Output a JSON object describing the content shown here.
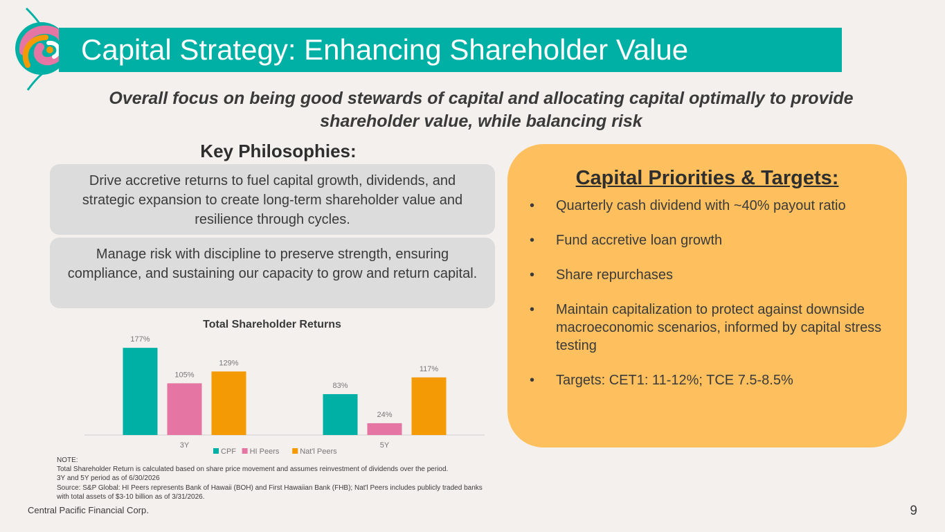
{
  "header": {
    "title": "Capital Strategy: Enhancing Shareholder Value",
    "brand_colors": {
      "teal": "#00b0a4",
      "pink": "#e575a3",
      "orange": "#f49a05",
      "gold": "#fec05e"
    }
  },
  "subtitle": {
    "line1": "Overall focus on being good stewards of capital and allocating capital optimally to provide",
    "line2": "shareholder value, while balancing risk"
  },
  "philosophies": {
    "heading": "Key Philosophies:",
    "items": [
      "Drive accretive returns to fuel capital growth, dividends, and strategic expansion to create long-term shareholder value and resilience through cycles.",
      "Manage risk with discipline to preserve strength, ensuring compliance, and sustaining our capacity to grow and return capital."
    ]
  },
  "priorities": {
    "heading": "Capital Priorities & Targets:",
    "bullet": "•",
    "items": [
      "Quarterly cash dividend with ~40% payout ratio",
      "Fund accretive loan growth",
      "Share repurchases",
      "Maintain capitalization to protect against downside macroeconomic scenarios, informed by capital stress testing",
      "Targets: CET1: 11-12%; TCE 7.5-8.5%"
    ]
  },
  "chart_data": {
    "type": "bar",
    "title": "Total Shareholder Returns",
    "categories": [
      "3Y",
      "5Y"
    ],
    "series": [
      {
        "name": "CPF",
        "values": [
          177,
          83
        ],
        "labels": [
          "177%",
          "83%"
        ],
        "color": "#00b0a4"
      },
      {
        "name": "HI Peers",
        "values": [
          105,
          24
        ],
        "labels": [
          "105%",
          "24%"
        ],
        "color": "#e575a3"
      },
      {
        "name": "Nat'l Peers",
        "values": [
          129,
          117
        ],
        "labels": [
          "129%",
          "117%"
        ],
        "color": "#f49a05"
      }
    ],
    "ylim": [
      0,
      180
    ],
    "legend_position": "bottom",
    "grid": false
  },
  "notes": [
    "NOTE:",
    "Total Shareholder Return is calculated based on share price movement and assumes reinvestment of dividends over the period.",
    "3Y and 5Y period as of 6/30/2026",
    "Source: S&P Global:  HI Peers represents Bank of Hawaii (BOH) and First Hawaiian Bank (FHB); Nat'l Peers includes publicly traded banks",
    "with total assets of $3-10 billion as of 3/31/2026."
  ],
  "footer": {
    "company": "Central Pacific Financial Corp.",
    "page": "9"
  }
}
